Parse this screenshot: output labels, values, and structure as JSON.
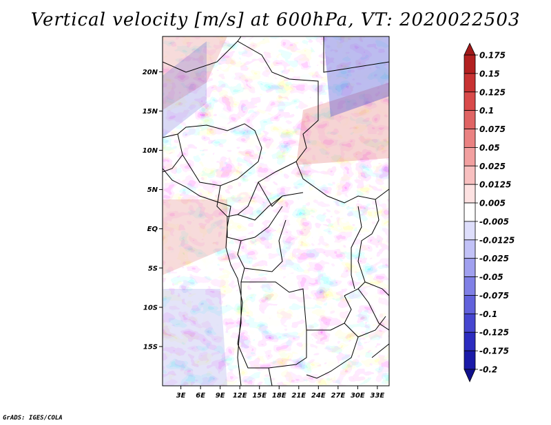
{
  "title": "Vertical velocity [m/s] at 600hPa, VT: 2020022503",
  "credit": "GrADS: IGES/COLA",
  "map": {
    "lat_labels": [
      {
        "label": "20N",
        "lat": 20
      },
      {
        "label": "15N",
        "lat": 15
      },
      {
        "label": "10N",
        "lat": 10
      },
      {
        "label": "5N",
        "lat": 5
      },
      {
        "label": "EQ",
        "lat": 0
      },
      {
        "label": "5S",
        "lat": -5
      },
      {
        "label": "10S",
        "lat": -10
      },
      {
        "label": "15S",
        "lat": -15
      }
    ],
    "lon_labels": [
      {
        "label": "3E",
        "lon": 3
      },
      {
        "label": "6E",
        "lon": 6
      },
      {
        "label": "9E",
        "lon": 9
      },
      {
        "label": "12E",
        "lon": 12
      },
      {
        "label": "15E",
        "lon": 15
      },
      {
        "label": "18E",
        "lon": 18
      },
      {
        "label": "21E",
        "lon": 21
      },
      {
        "label": "24E",
        "lon": 24
      },
      {
        "label": "27E",
        "lon": 27
      },
      {
        "label": "30E",
        "lon": 30
      },
      {
        "label": "33E",
        "lon": 33
      }
    ],
    "lon_range": [
      0.2,
      34.8
    ],
    "lat_range": [
      -20,
      24.5
    ]
  },
  "colorbar": {
    "labels": [
      "0.175",
      "0.15",
      "0.125",
      "0.1",
      "0.075",
      "0.05",
      "0.025",
      "0.0125",
      "0.005",
      "-0.005",
      "-0.0125",
      "-0.025",
      "-0.05",
      "-0.075",
      "-0.1",
      "-0.125",
      "-0.175",
      "-0.2"
    ],
    "colors": [
      "#a01a1a",
      "#b22020",
      "#c83232",
      "#d94a4a",
      "#e06464",
      "#ea8282",
      "#f2a0a0",
      "#f8c0c0",
      "#fde2e2",
      "#ffffff",
      "#dedefb",
      "#c2c2f7",
      "#a0a0ef",
      "#8080e6",
      "#6262dc",
      "#4646d0",
      "#2c2cc0",
      "#1a1aa8",
      "#10108c"
    ]
  }
}
